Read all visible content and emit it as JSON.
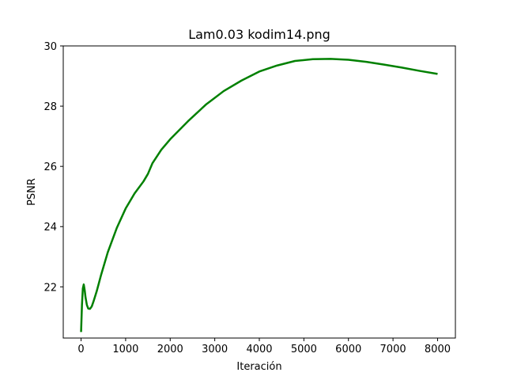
{
  "chart_data": {
    "type": "line",
    "title": "Lam0.03 kodim14.png",
    "xlabel": "Iteración",
    "ylabel": "PSNR",
    "xlim": [
      -400,
      8400
    ],
    "ylim": [
      20.3,
      30.0
    ],
    "xticks": [
      0,
      1000,
      2000,
      3000,
      4000,
      5000,
      6000,
      7000,
      8000
    ],
    "yticks": [
      22,
      24,
      26,
      28,
      30
    ],
    "grid": false,
    "line_color": "#008000",
    "series": [
      {
        "x": [
          0,
          20,
          40,
          60,
          80,
          100,
          130,
          160,
          200,
          240,
          280,
          350,
          450,
          600,
          800,
          1000,
          1200,
          1400,
          1500,
          1600,
          1800,
          2000,
          2400,
          2800,
          3200,
          3600,
          4000,
          4400,
          4800,
          5200,
          5600,
          6000,
          6400,
          6800,
          7200,
          7600,
          8000
        ],
        "y": [
          20.5,
          21.4,
          21.95,
          22.08,
          21.9,
          21.65,
          21.4,
          21.28,
          21.27,
          21.35,
          21.52,
          21.85,
          22.4,
          23.15,
          23.95,
          24.6,
          25.1,
          25.5,
          25.75,
          26.1,
          26.55,
          26.9,
          27.5,
          28.05,
          28.5,
          28.85,
          29.15,
          29.35,
          29.5,
          29.56,
          29.57,
          29.54,
          29.47,
          29.38,
          29.28,
          29.17,
          29.07
        ]
      }
    ]
  }
}
